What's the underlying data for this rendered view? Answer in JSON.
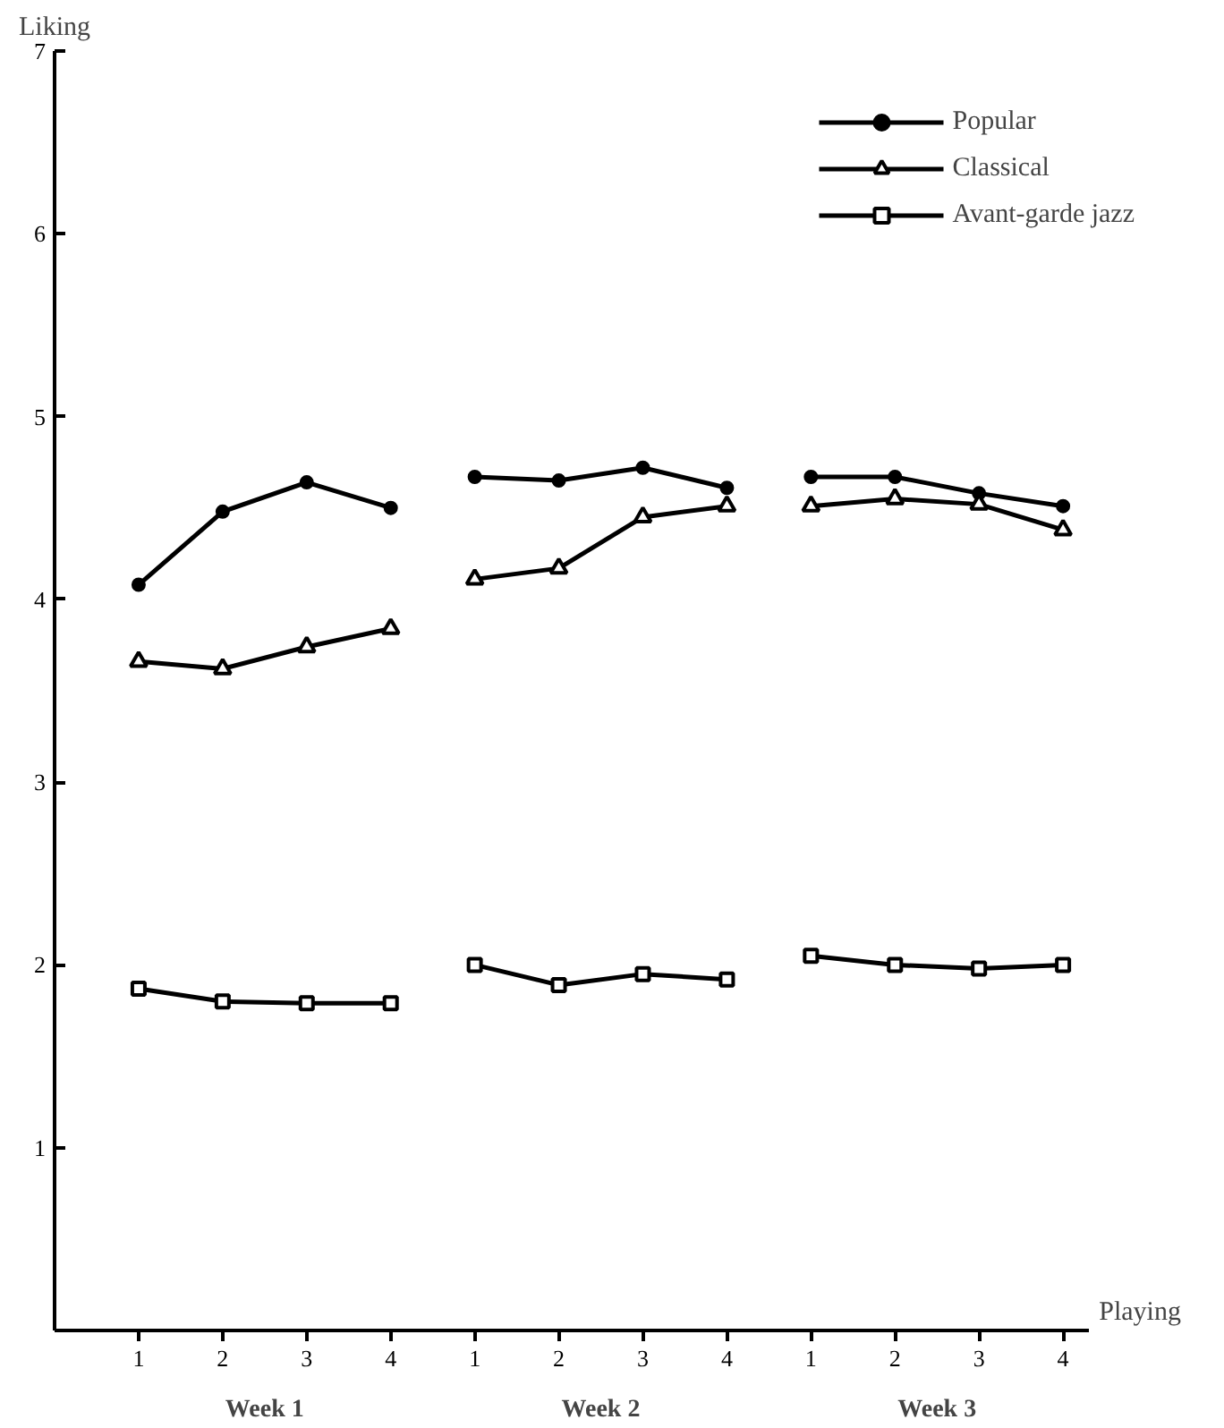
{
  "chart_data": {
    "type": "line",
    "ylabel": "Liking",
    "xlabel": "Playing",
    "categories": [
      "1",
      "2",
      "3",
      "4",
      "1",
      "2",
      "3",
      "4",
      "1",
      "2",
      "3",
      "4"
    ],
    "ylim": [
      0,
      7
    ],
    "yticks": [
      {
        "value": 0,
        "label": null
      },
      1,
      2,
      3,
      4,
      5,
      6,
      7
    ],
    "annotations": [
      "Week 1",
      "Week 2",
      "Week 3"
    ],
    "grid": false,
    "legend": "top right",
    "line_style": "solid",
    "series": [
      {
        "name": "Popular",
        "color": "#000000",
        "marker": "circle",
        "values": [
          4.08,
          4.48,
          4.64,
          4.5,
          null,
          null,
          null,
          null,
          null,
          null,
          null,
          null
        ]
      },
      {
        "color": "#000000",
        "marker": "circle",
        "values": [
          null,
          null,
          null,
          null,
          4.67,
          4.65,
          4.72,
          4.61,
          null,
          null,
          null,
          null
        ]
      },
      {
        "color": "#000000",
        "marker": "circle",
        "values": [
          null,
          null,
          null,
          null,
          null,
          null,
          null,
          null,
          4.67,
          4.67,
          4.58,
          4.51
        ]
      },
      {
        "name": "Classical",
        "color": "#000000",
        "marker": "triangle",
        "values": [
          3.66,
          3.62,
          3.74,
          3.84,
          null,
          null,
          null,
          null,
          null,
          null,
          null,
          null
        ]
      },
      {
        "color": "#000000",
        "marker": "triangle",
        "values": [
          null,
          null,
          null,
          null,
          4.11,
          4.17,
          4.45,
          4.51,
          null,
          null,
          null,
          null
        ]
      },
      {
        "color": "#000000",
        "marker": "triangle",
        "values": [
          null,
          null,
          null,
          null,
          null,
          null,
          null,
          null,
          4.51,
          4.55,
          4.52,
          4.38
        ]
      },
      {
        "name": "Avant-garde jazz",
        "color": "#000000",
        "marker": "square",
        "values": [
          1.87,
          1.8,
          1.79,
          1.79,
          null,
          null,
          null,
          null,
          null,
          null,
          null,
          null
        ]
      },
      {
        "color": "#000000",
        "marker": "square",
        "values": [
          null,
          null,
          null,
          null,
          2.0,
          1.89,
          1.95,
          1.92,
          null,
          null,
          null,
          null
        ]
      },
      {
        "color": "#000000",
        "marker": "square",
        "values": [
          null,
          null,
          null,
          null,
          null,
          null,
          null,
          null,
          2.05,
          2.0,
          1.98,
          2.0
        ]
      }
    ]
  }
}
